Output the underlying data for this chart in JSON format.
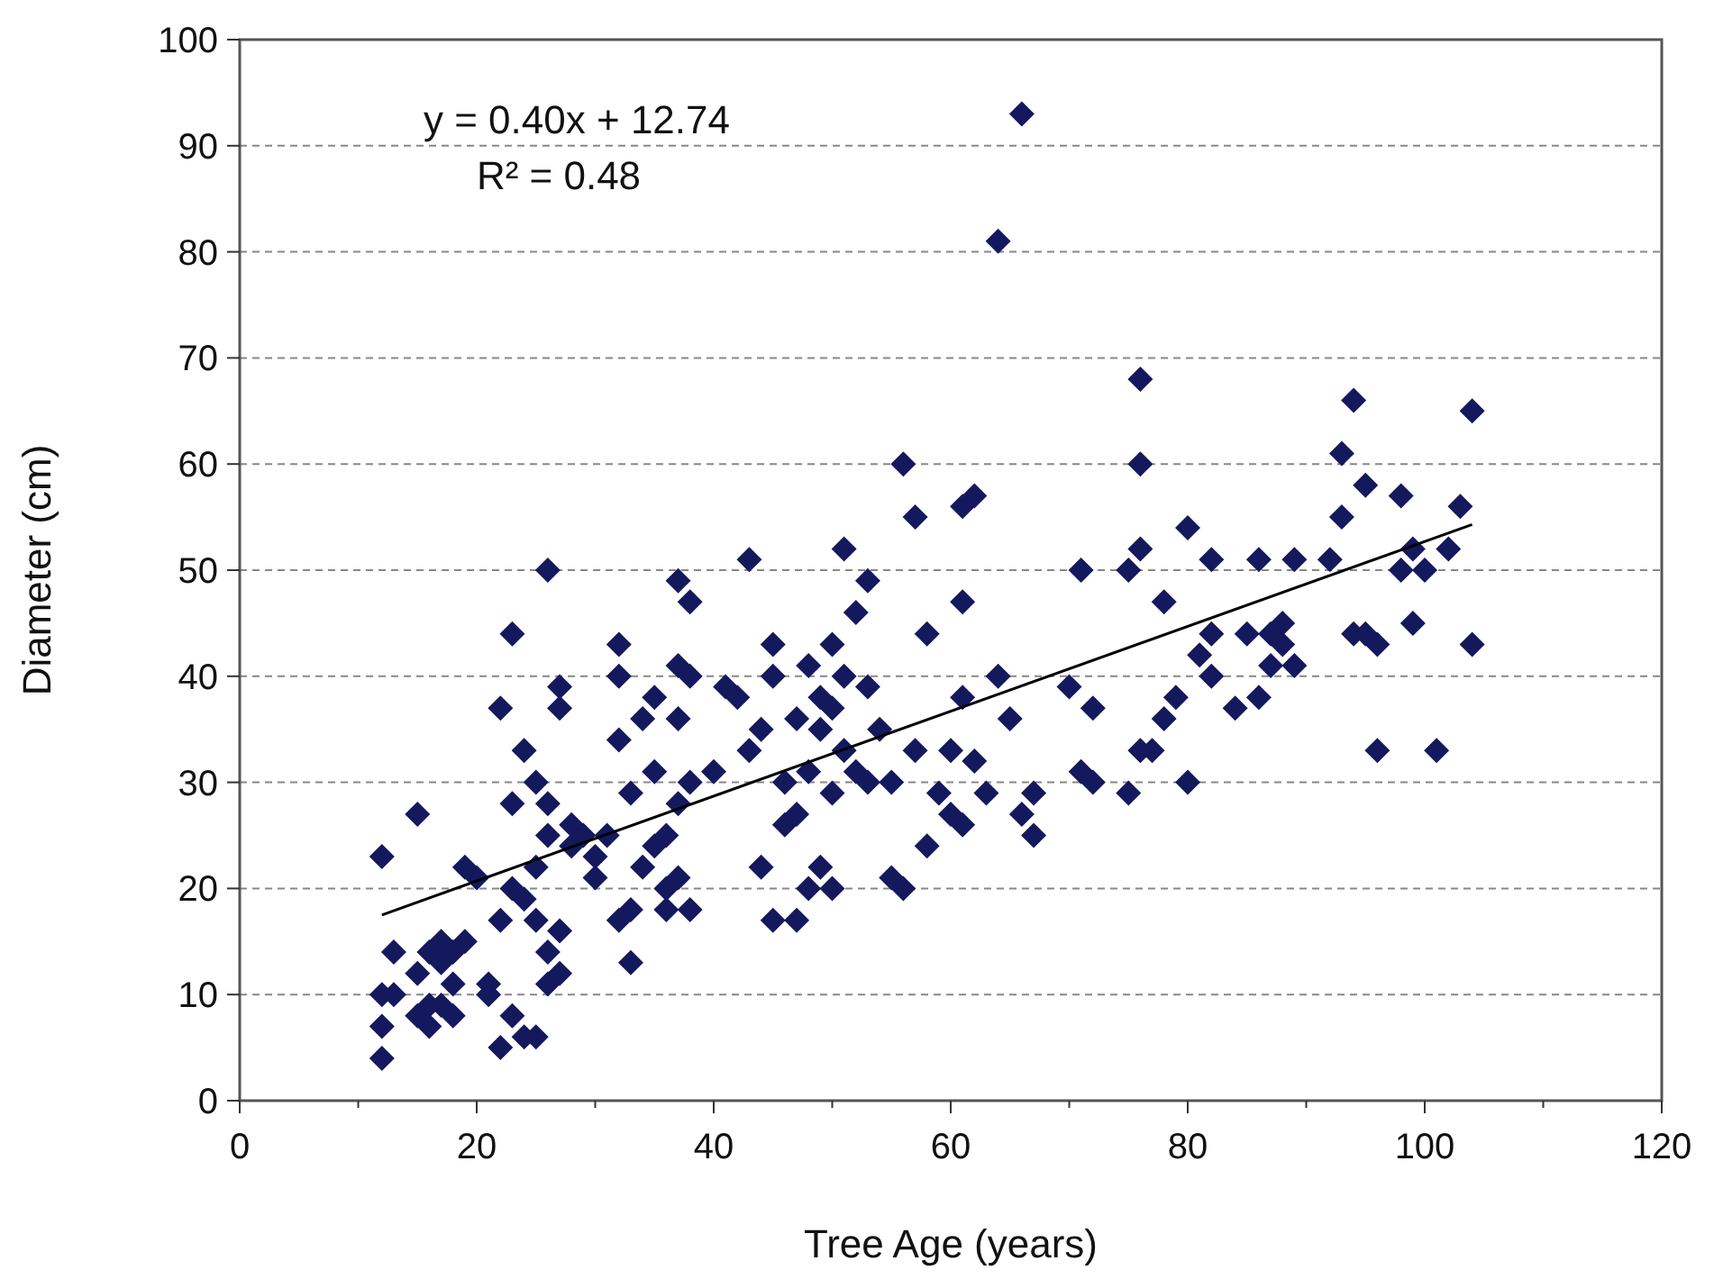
{
  "chart_data": {
    "type": "scatter",
    "xlabel": "Tree Age (years)",
    "ylabel": "Diameter (cm)",
    "xlim": [
      0,
      120
    ],
    "xticks": [
      0,
      20,
      40,
      60,
      80,
      100,
      120
    ],
    "ylim": [
      0,
      100
    ],
    "yticks": [
      0,
      10,
      20,
      30,
      40,
      50,
      60,
      70,
      80,
      90,
      100
    ],
    "grid": "y",
    "marker": "diamond",
    "annotations": [
      "y = 0.40x + 12.74",
      "R² = 0.48"
    ],
    "series": [
      {
        "color": "#14195e",
        "x": [
          12,
          12,
          12,
          12,
          13,
          13,
          15,
          15,
          15,
          16,
          16,
          16,
          17,
          17,
          17,
          18,
          18,
          18,
          19,
          19,
          20,
          21,
          21,
          22,
          22,
          22,
          23,
          23,
          23,
          23,
          24,
          24,
          24,
          25,
          25,
          25,
          25,
          26,
          26,
          26,
          26,
          26,
          27,
          27,
          27,
          27,
          28,
          28,
          29,
          30,
          30,
          31,
          32,
          32,
          32,
          32,
          33,
          33,
          33,
          34,
          34,
          35,
          35,
          35,
          36,
          36,
          36,
          37,
          37,
          37,
          37,
          37,
          38,
          38,
          38,
          38,
          40,
          41,
          42,
          43,
          43,
          44,
          44,
          45,
          45,
          45,
          46,
          46,
          47,
          47,
          47,
          48,
          48,
          48,
          49,
          49,
          49,
          50,
          50,
          50,
          50,
          51,
          51,
          51,
          52,
          52,
          53,
          53,
          53,
          54,
          55,
          55,
          56,
          56,
          57,
          57,
          58,
          58,
          59,
          60,
          60,
          61,
          61,
          61,
          61,
          62,
          62,
          63,
          64,
          64,
          65,
          66,
          66,
          67,
          67,
          70,
          71,
          71,
          72,
          72,
          75,
          75,
          76,
          76,
          76,
          76,
          77,
          78,
          78,
          79,
          80,
          80,
          81,
          82,
          82,
          82,
          84,
          85,
          86,
          86,
          87,
          87,
          88,
          88,
          89,
          89,
          92,
          93,
          93,
          94,
          94,
          95,
          95,
          96,
          96,
          98,
          98,
          99,
          99,
          100,
          101,
          102,
          103,
          104,
          104
        ],
        "values": [
          4,
          7,
          10,
          23,
          10,
          14,
          27,
          8,
          12,
          9,
          14,
          7,
          13,
          9,
          15,
          8,
          11,
          14,
          15,
          22,
          21,
          11,
          10,
          5,
          17,
          37,
          20,
          44,
          8,
          28,
          6,
          19,
          33,
          6,
          30,
          22,
          17,
          50,
          14,
          11,
          25,
          28,
          16,
          12,
          37,
          39,
          24,
          26,
          25,
          23,
          21,
          25,
          43,
          40,
          34,
          17,
          18,
          13,
          29,
          36,
          22,
          24,
          38,
          31,
          20,
          25,
          18,
          49,
          41,
          36,
          28,
          21,
          47,
          30,
          18,
          40,
          31,
          39,
          38,
          51,
          33,
          35,
          22,
          43,
          40,
          17,
          30,
          26,
          27,
          17,
          36,
          20,
          41,
          31,
          38,
          35,
          22,
          43,
          37,
          29,
          20,
          52,
          40,
          33,
          46,
          31,
          49,
          39,
          30,
          35,
          30,
          21,
          20,
          60,
          55,
          33,
          44,
          24,
          29,
          33,
          27,
          56,
          47,
          38,
          26,
          57,
          32,
          29,
          81,
          40,
          36,
          93,
          27,
          25,
          29,
          39,
          50,
          31,
          30,
          37,
          50,
          29,
          68,
          60,
          52,
          33,
          33,
          47,
          36,
          38,
          54,
          30,
          42,
          51,
          44,
          40,
          37,
          44,
          51,
          38,
          44,
          41,
          45,
          43,
          51,
          41,
          51,
          61,
          55,
          66,
          44,
          58,
          44,
          33,
          43,
          57,
          50,
          52,
          45,
          50,
          33,
          52,
          56,
          65,
          43
        ]
      },
      {
        "type": "line",
        "color": "#000000",
        "marker": "none",
        "x": [
          12,
          104
        ],
        "values": [
          17.5,
          54.3
        ]
      }
    ]
  }
}
